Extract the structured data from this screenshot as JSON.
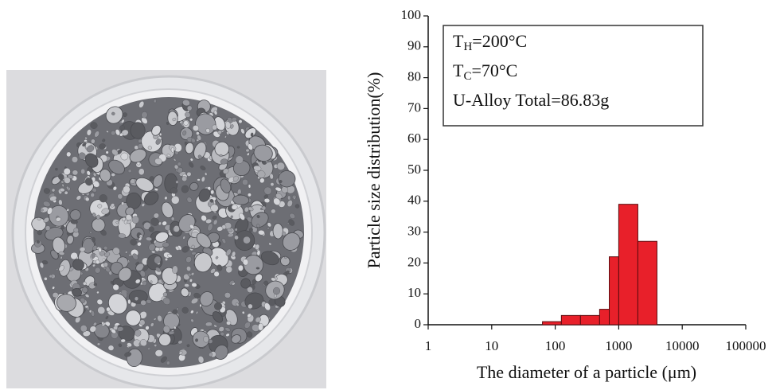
{
  "chart_data": {
    "type": "histogram",
    "xscale": "log",
    "xlabel": "The diameter of a particle (μm)",
    "ylabel": "Particle size distribution(%)",
    "bins": [
      63,
      125,
      250,
      500,
      710,
      1000,
      2000,
      4000
    ],
    "values": [
      1,
      3,
      3,
      5,
      22,
      39,
      27
    ],
    "color": "#e8202a",
    "xlim": [
      1,
      100000
    ],
    "xticks": [
      1,
      10,
      100,
      1000,
      10000,
      100000
    ],
    "ylim": [
      0,
      100
    ],
    "yticks": [
      0,
      10,
      20,
      30,
      40,
      50,
      60,
      70,
      80,
      90,
      100
    ],
    "annotations": [
      {
        "text": "T",
        "sub": "H",
        "after": "=200°C"
      },
      {
        "text": "T",
        "sub": "C",
        "after": "=70°C"
      },
      {
        "text": "U-Alloy Total=86.83g"
      }
    ]
  }
}
